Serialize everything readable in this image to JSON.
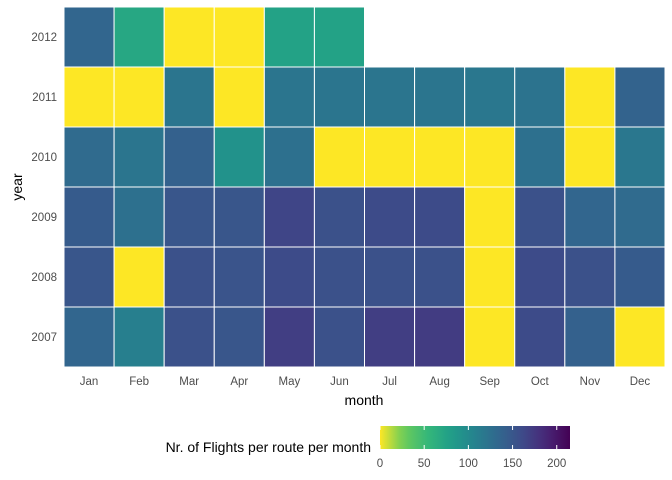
{
  "chart_data": {
    "type": "heatmap",
    "title": "",
    "xlabel": "month",
    "ylabel": "year",
    "x_categories": [
      "Jan",
      "Feb",
      "Mar",
      "Apr",
      "May",
      "Jun",
      "Jul",
      "Aug",
      "Sep",
      "Oct",
      "Nov",
      "Dec"
    ],
    "y_categories": [
      "2012",
      "2011",
      "2010",
      "2009",
      "2008",
      "2007"
    ],
    "values": [
      [
        135,
        70,
        0,
        0,
        75,
        75,
        null,
        null,
        null,
        null,
        null,
        null
      ],
      [
        0,
        0,
        120,
        0,
        120,
        120,
        120,
        120,
        118,
        122,
        0,
        138
      ],
      [
        130,
        120,
        140,
        92,
        125,
        0,
        0,
        0,
        0,
        125,
        0,
        118
      ],
      [
        145,
        125,
        150,
        150,
        165,
        155,
        160,
        160,
        0,
        155,
        135,
        130
      ],
      [
        150,
        0,
        155,
        152,
        160,
        155,
        155,
        155,
        0,
        160,
        155,
        145
      ],
      [
        135,
        110,
        155,
        150,
        170,
        155,
        170,
        172,
        0,
        160,
        140,
        0
      ]
    ],
    "colorbar": {
      "title": "Nr. of Flights per route per month",
      "min": 0,
      "max": 215,
      "ticks": [
        "0",
        "50",
        "100",
        "150",
        "200"
      ],
      "reversed": true,
      "colormap": "viridis"
    },
    "grid": false,
    "legend_position": "bottom"
  }
}
